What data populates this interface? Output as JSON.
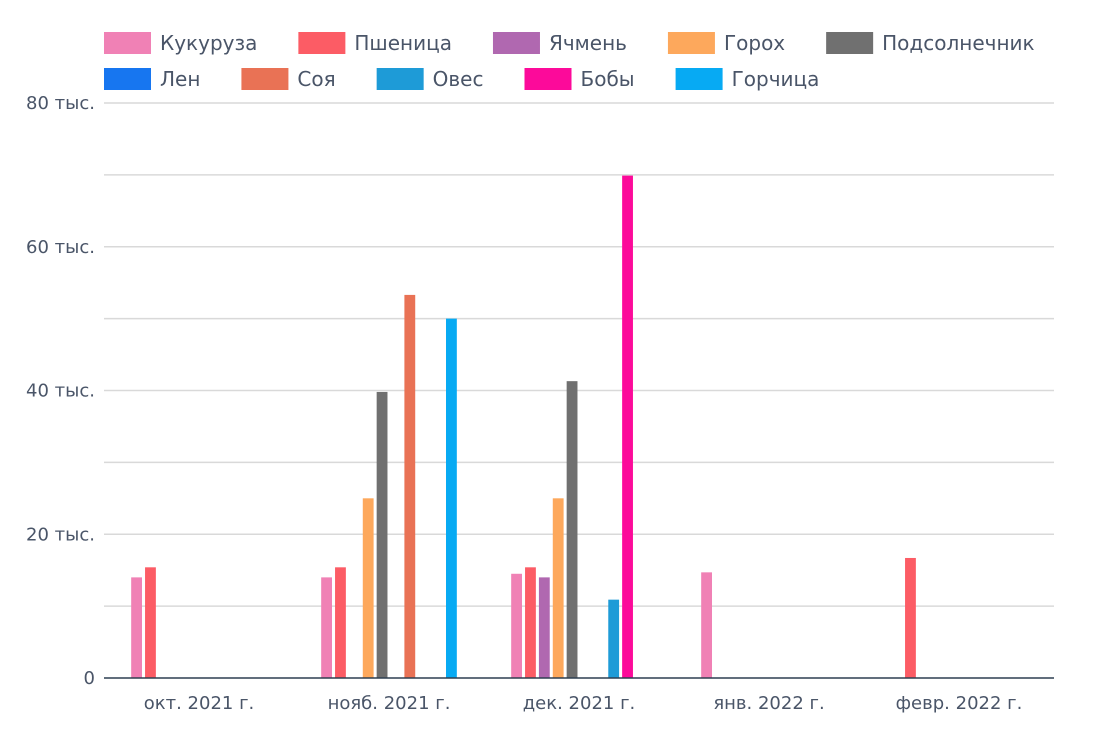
{
  "chart_data": {
    "type": "bar",
    "categories": [
      "окт. 2021 г.",
      "нояб. 2021 г.",
      "дек. 2021 г.",
      "янв. 2022 г.",
      "февр. 2022 г."
    ],
    "series": [
      {
        "name": "Кукуруза",
        "color": "#f081b5",
        "values": [
          14000,
          14000,
          14500,
          14700,
          0
        ]
      },
      {
        "name": "Пшеница",
        "color": "#fc5c65",
        "values": [
          15400,
          15400,
          15400,
          0,
          16700
        ]
      },
      {
        "name": "Ячмень",
        "color": "#b068b0",
        "values": [
          0,
          0,
          14000,
          0,
          0
        ]
      },
      {
        "name": "Горох",
        "color": "#fda85c",
        "values": [
          0,
          25000,
          25000,
          0,
          0
        ]
      },
      {
        "name": "Подсолнечник",
        "color": "#707070",
        "values": [
          0,
          39800,
          41300,
          0,
          0
        ]
      },
      {
        "name": "Лен",
        "color": "#1776f0",
        "values": [
          0,
          0,
          0,
          0,
          0
        ]
      },
      {
        "name": "Соя",
        "color": "#e97255",
        "values": [
          0,
          53300,
          0,
          0,
          0
        ]
      },
      {
        "name": "Овес",
        "color": "#1e9bd7",
        "values": [
          0,
          0,
          10900,
          0,
          0
        ]
      },
      {
        "name": "Бобы",
        "color": "#fc0a9a",
        "values": [
          0,
          0,
          69900,
          0,
          0
        ]
      },
      {
        "name": "Горчица",
        "color": "#07aaf3",
        "values": [
          0,
          50000,
          0,
          0,
          0
        ]
      }
    ],
    "ylim": [
      0,
      80000
    ],
    "yticks": [
      {
        "value": 0,
        "label": "0"
      },
      {
        "value": 20000,
        "label": "20 тыс."
      },
      {
        "value": 40000,
        "label": "40 тыс."
      },
      {
        "value": 60000,
        "label": "60 тыс."
      },
      {
        "value": 80000,
        "label": "80 тыс."
      }
    ],
    "minor_gridlines": [
      10000,
      30000,
      50000,
      70000
    ],
    "grid": true,
    "legend_position": "top"
  }
}
